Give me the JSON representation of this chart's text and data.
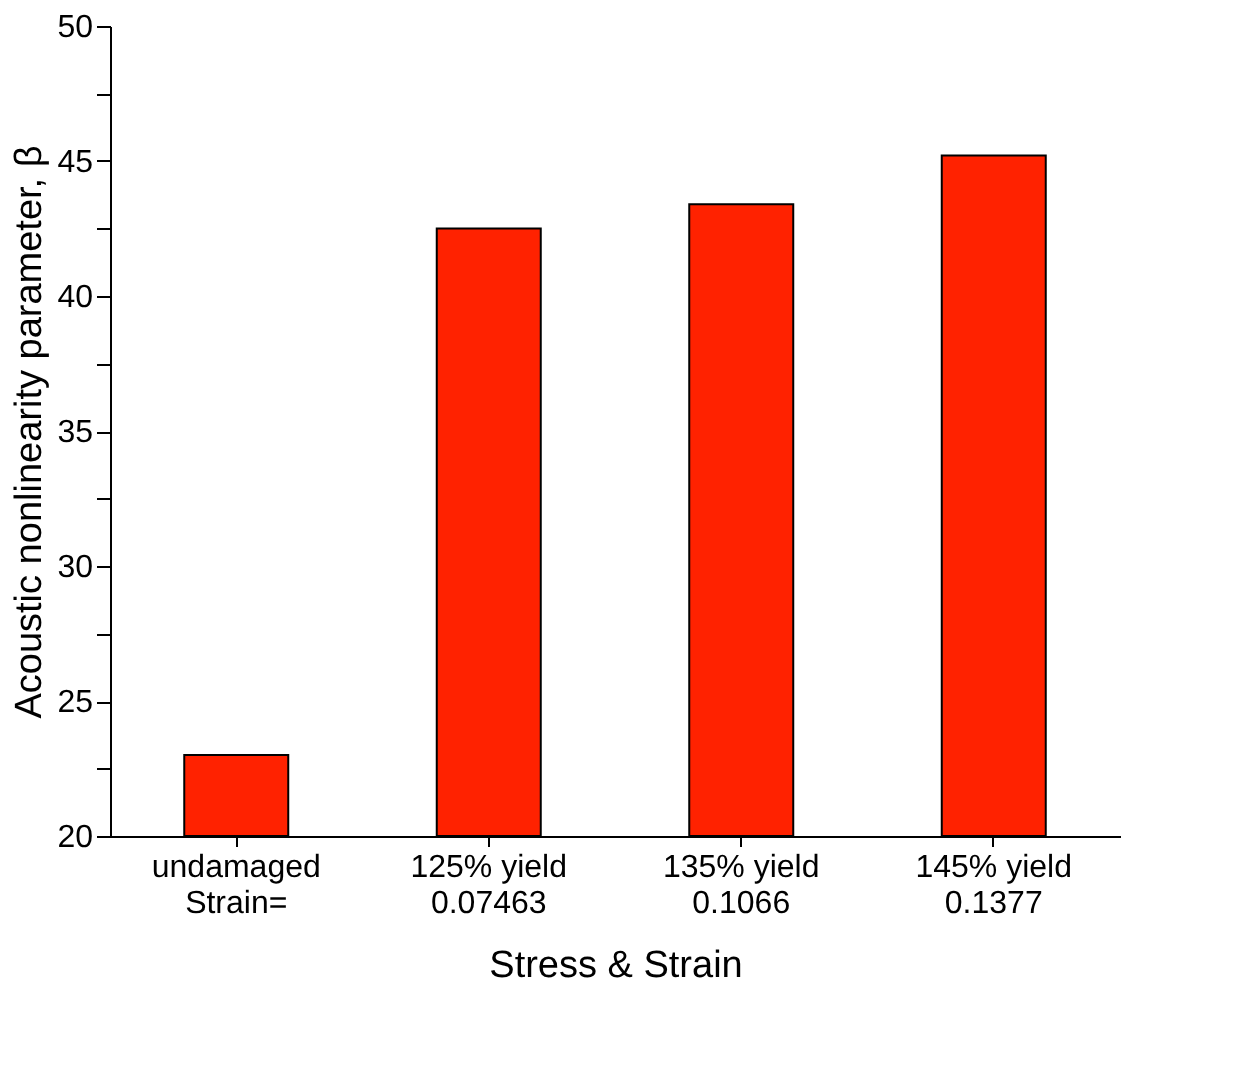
{
  "chart_data": {
    "type": "bar",
    "xlabel": "Stress & Strain",
    "ylabel": "Acoustic nonlinearity parameter, β",
    "categories": [
      "undamaged\nStrain=",
      "125% yield\n0.07463",
      "135% yield\n0.1066",
      "145% yield\n0.1377"
    ],
    "values": [
      23,
      42.5,
      43.4,
      45.2
    ],
    "color": "#ff2200",
    "ylim": [
      20,
      50
    ],
    "yticks": [
      20,
      {
        "value": 22.5,
        "label": null
      },
      25,
      {
        "value": 27.5,
        "label": null
      },
      30,
      {
        "value": 32.5,
        "label": null
      },
      35,
      {
        "value": 37.5,
        "label": null
      },
      40,
      {
        "value": 42.5,
        "label": null
      },
      45,
      {
        "value": 47.5,
        "label": null
      },
      50
    ],
    "grid": false
  }
}
